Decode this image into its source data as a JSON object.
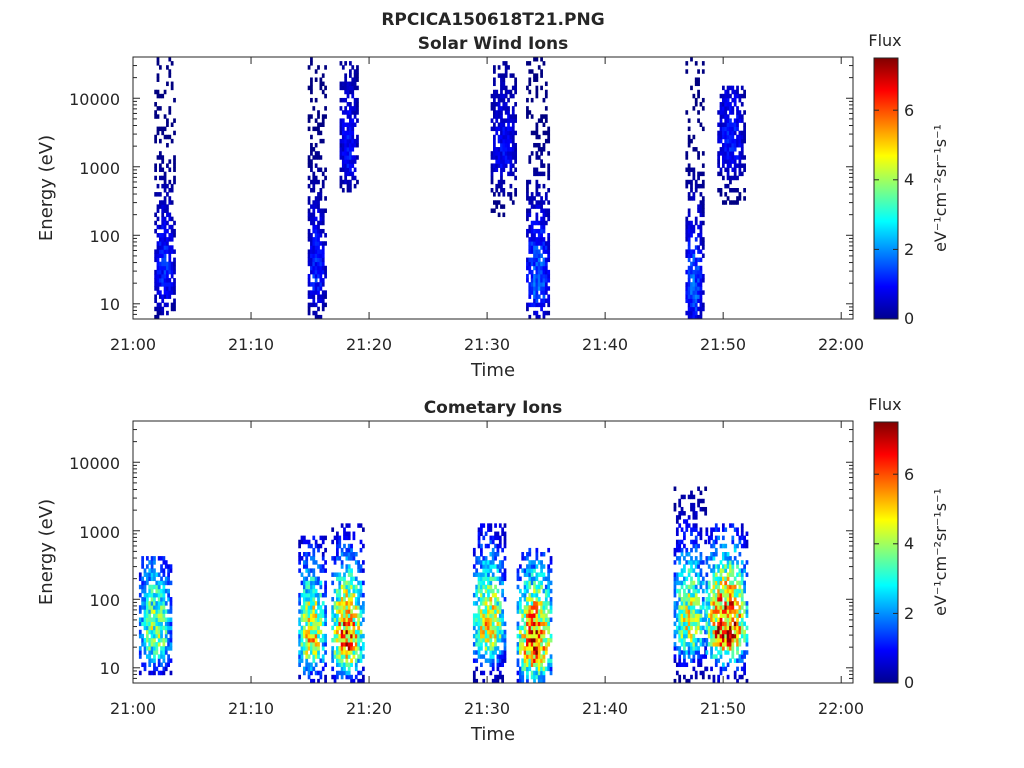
{
  "figure": {
    "title": "RPCICA150618T21.PNG"
  },
  "chart_data": [
    {
      "type": "heatmap",
      "title": "Solar Wind Ions",
      "xlabel": "Time",
      "ylabel": "Energy (eV)",
      "x_range": [
        "21:00",
        "22:01"
      ],
      "x_ticks": [
        "21:00",
        "21:10",
        "21:20",
        "21:30",
        "21:40",
        "21:50",
        "22:00"
      ],
      "y_scale": "log",
      "y_range": [
        6,
        40000
      ],
      "y_ticks": [
        10,
        100,
        1000,
        10000
      ],
      "y_tick_labels": [
        "10",
        "100",
        "1000",
        "10000"
      ],
      "colorbar": {
        "title": "Flux",
        "label": "eV⁻¹cm⁻²sr⁻¹s⁻¹",
        "range": [
          0,
          7.5
        ],
        "ticks": [
          0,
          2,
          4,
          6
        ],
        "tick_labels": [
          "0",
          "2",
          "4",
          "6"
        ],
        "colormap": "jet"
      },
      "bursts": [
        {
          "start": "21:01.8",
          "end": "21:03.5",
          "emin": 6,
          "emax": 38000,
          "peak": 1.3,
          "peak_energy": 25
        },
        {
          "start": "21:14.8",
          "end": "21:16.3",
          "emin": 6,
          "emax": 38000,
          "peak": 1.3,
          "peak_energy": 25
        },
        {
          "start": "21:17.5",
          "end": "21:19.0",
          "emin": 400,
          "emax": 35000,
          "peak": 1.1,
          "peak_energy": 1500
        },
        {
          "start": "21:30.3",
          "end": "21:32.5",
          "emin": 200,
          "emax": 35000,
          "peak": 1.0,
          "peak_energy": 1500
        },
        {
          "start": "21:33.3",
          "end": "21:35.3",
          "emin": 6,
          "emax": 38000,
          "peak": 1.8,
          "peak_energy": 20
        },
        {
          "start": "21:46.8",
          "end": "21:48.3",
          "emin": 6,
          "emax": 38000,
          "peak": 1.8,
          "peak_energy": 15
        },
        {
          "start": "21:49.5",
          "end": "21:51.8",
          "emin": 300,
          "emax": 15000,
          "peak": 1.2,
          "peak_energy": 2000
        }
      ]
    },
    {
      "type": "heatmap",
      "title": "Cometary Ions",
      "xlabel": "Time",
      "ylabel": "Energy (eV)",
      "x_range": [
        "21:00",
        "22:01"
      ],
      "x_ticks": [
        "21:00",
        "21:10",
        "21:20",
        "21:30",
        "21:40",
        "21:50",
        "22:00"
      ],
      "y_scale": "log",
      "y_range": [
        6,
        40000
      ],
      "y_ticks": [
        10,
        100,
        1000,
        10000
      ],
      "y_tick_labels": [
        "10",
        "100",
        "1000",
        "10000"
      ],
      "colorbar": {
        "title": "Flux",
        "label": "eV⁻¹cm⁻²sr⁻¹s⁻¹",
        "range": [
          0,
          7.5
        ],
        "ticks": [
          0,
          2,
          4,
          6
        ],
        "tick_labels": [
          "0",
          "2",
          "4",
          "6"
        ],
        "colormap": "jet"
      },
      "bursts": [
        {
          "start": "21:00.5",
          "end": "21:03.3",
          "emin": 8,
          "emax": 400,
          "peak": 4.2,
          "peak_energy": 30
        },
        {
          "start": "21:14.0",
          "end": "21:16.3",
          "emin": 6,
          "emax": 900,
          "peak": 5.2,
          "peak_energy": 25
        },
        {
          "start": "21:16.8",
          "end": "21:19.5",
          "emin": 6,
          "emax": 1300,
          "peak": 6.3,
          "peak_energy": 25
        },
        {
          "start": "21:28.8",
          "end": "21:31.5",
          "emin": 6,
          "emax": 1300,
          "peak": 5.2,
          "peak_energy": 35
        },
        {
          "start": "21:32.5",
          "end": "21:35.5",
          "emin": 6,
          "emax": 600,
          "peak": 6.5,
          "peak_energy": 20
        },
        {
          "start": "21:45.8",
          "end": "21:48.5",
          "emin": 6,
          "emax": 4500,
          "peak": 4.8,
          "peak_energy": 40
        },
        {
          "start": "21:48.5",
          "end": "21:52.0",
          "emin": 6,
          "emax": 1300,
          "peak": 7.0,
          "peak_energy": 35
        }
      ]
    }
  ]
}
